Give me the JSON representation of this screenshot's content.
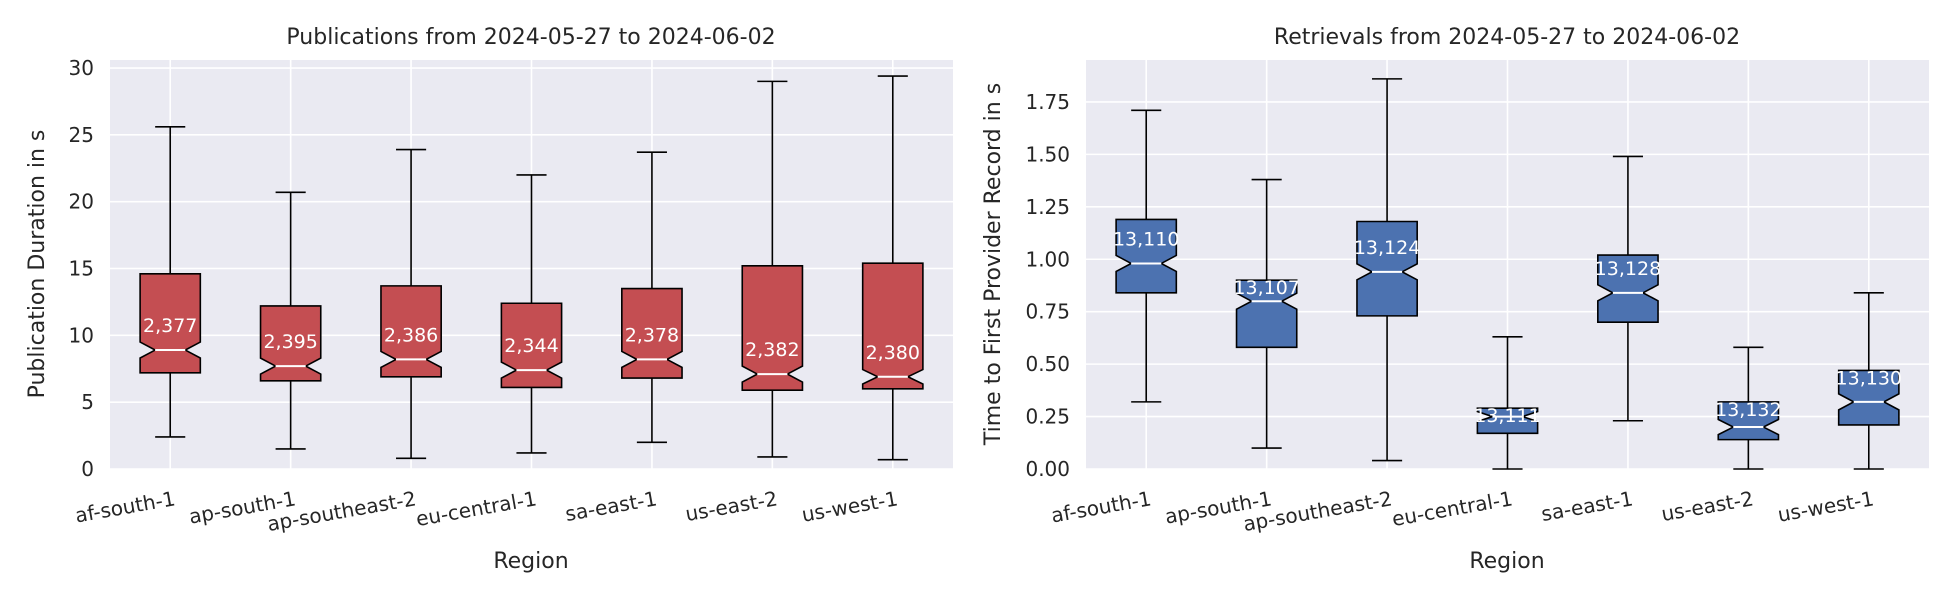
{
  "chart_data": [
    {
      "type": "box",
      "title": "Publications from 2024-05-27 to 2024-06-02",
      "xlabel": "Region",
      "ylabel": "Publication Duration in s",
      "ylim": [
        0,
        30.6
      ],
      "yticks": [
        0,
        5,
        10,
        15,
        20,
        25,
        30
      ],
      "ytick_labels": [
        "0",
        "5",
        "10",
        "15",
        "20",
        "25",
        "30"
      ],
      "grid": true,
      "notched": true,
      "color": "#c44e52",
      "categories": [
        "af-south-1",
        "ap-south-1",
        "ap-southeast-2",
        "eu-central-1",
        "sa-east-1",
        "us-east-2",
        "us-west-1"
      ],
      "boxes": [
        {
          "whislo": 2.4,
          "q1": 7.2,
          "med": 8.9,
          "q3": 14.6,
          "whishi": 25.6,
          "count_label": "2,377"
        },
        {
          "whislo": 1.5,
          "q1": 6.6,
          "med": 7.7,
          "q3": 12.2,
          "whishi": 20.7,
          "count_label": "2,395"
        },
        {
          "whislo": 0.8,
          "q1": 6.9,
          "med": 8.2,
          "q3": 13.7,
          "whishi": 23.9,
          "count_label": "2,386"
        },
        {
          "whislo": 1.2,
          "q1": 6.1,
          "med": 7.4,
          "q3": 12.4,
          "whishi": 22.0,
          "count_label": "2,344"
        },
        {
          "whislo": 2.0,
          "q1": 6.8,
          "med": 8.2,
          "q3": 13.5,
          "whishi": 23.7,
          "count_label": "2,378"
        },
        {
          "whislo": 0.9,
          "q1": 5.9,
          "med": 7.1,
          "q3": 15.2,
          "whishi": 29.0,
          "count_label": "2,382"
        },
        {
          "whislo": 0.7,
          "q1": 6.0,
          "med": 6.9,
          "q3": 15.4,
          "whishi": 29.4,
          "count_label": "2,380"
        }
      ]
    },
    {
      "type": "box",
      "title": "Retrievals from 2024-05-27 to 2024-06-02",
      "xlabel": "Region",
      "ylabel": "Time to First Provider Record in s",
      "ylim": [
        0,
        1.95
      ],
      "yticks": [
        0,
        0.25,
        0.5,
        0.75,
        1.0,
        1.25,
        1.5,
        1.75
      ],
      "ytick_labels": [
        "0.00",
        "0.25",
        "0.50",
        "0.75",
        "1.00",
        "1.25",
        "1.50",
        "1.75"
      ],
      "grid": true,
      "notched": true,
      "color": "#4c72b0",
      "categories": [
        "af-south-1",
        "ap-south-1",
        "ap-southeast-2",
        "eu-central-1",
        "sa-east-1",
        "us-east-2",
        "us-west-1"
      ],
      "boxes": [
        {
          "whislo": 0.32,
          "q1": 0.84,
          "med": 0.98,
          "q3": 1.19,
          "whishi": 1.71,
          "count_label": "13,110"
        },
        {
          "whislo": 0.1,
          "q1": 0.58,
          "med": 0.8,
          "q3": 0.9,
          "whishi": 1.38,
          "count_label": "13,107"
        },
        {
          "whislo": 0.04,
          "q1": 0.73,
          "med": 0.94,
          "q3": 1.18,
          "whishi": 1.86,
          "count_label": "13,124"
        },
        {
          "whislo": 0.0,
          "q1": 0.17,
          "med": 0.25,
          "q3": 0.29,
          "whishi": 0.63,
          "count_label": "13,111"
        },
        {
          "whislo": 0.23,
          "q1": 0.7,
          "med": 0.84,
          "q3": 1.02,
          "whishi": 1.49,
          "count_label": "13,128"
        },
        {
          "whislo": 0.0,
          "q1": 0.14,
          "med": 0.2,
          "q3": 0.32,
          "whishi": 0.58,
          "count_label": "13,132"
        },
        {
          "whislo": 0.0,
          "q1": 0.21,
          "med": 0.32,
          "q3": 0.47,
          "whishi": 0.84,
          "count_label": "13,130"
        }
      ]
    }
  ]
}
